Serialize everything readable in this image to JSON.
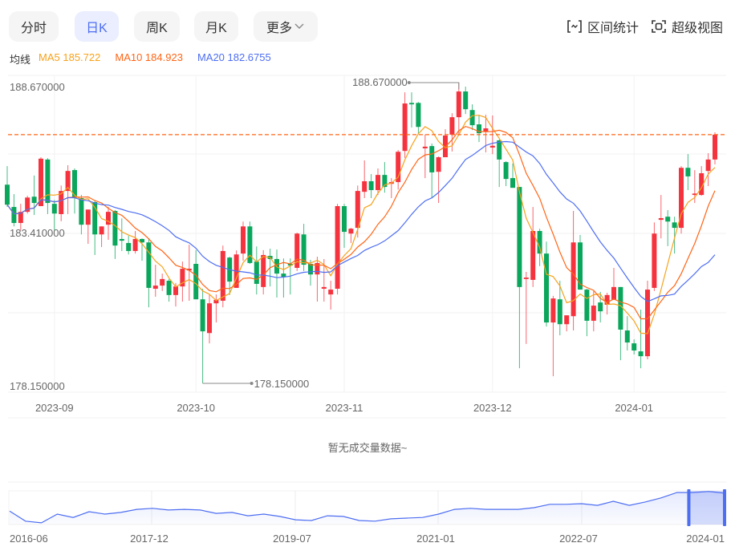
{
  "toolbar": {
    "tabs": [
      {
        "label": "分时",
        "active": false
      },
      {
        "label": "日K",
        "active": true
      },
      {
        "label": "周K",
        "active": false
      },
      {
        "label": "月K",
        "active": false
      },
      {
        "label": "更多",
        "active": false
      }
    ],
    "range_stats_label": "区间统计",
    "super_view_label": "超级视图"
  },
  "legend": {
    "title": "均线",
    "ma5": "MA5 185.722",
    "ma10": "MA10 184.923",
    "ma20": "MA20 182.6755"
  },
  "colors": {
    "up": "#f5333f",
    "down": "#0aa65c",
    "ma5": "#f7a21b",
    "ma10": "#ff6516",
    "ma20": "#4e6ef2",
    "accent": "#4e6ef2"
  },
  "chart_data": {
    "type": "candlestick",
    "y_labels": [
      "188.670000",
      "183.410000",
      "178.150000"
    ],
    "ylim": [
      178.15,
      188.67
    ],
    "last_price": 186.85,
    "high_marker": {
      "label": "188.670000",
      "index": 67,
      "value": 188.67
    },
    "low_marker": {
      "label": "178.150000",
      "index": 29,
      "value": 178.15
    },
    "x_labels": [
      {
        "label": "2023-09",
        "index": 7
      },
      {
        "label": "2023-10",
        "index": 28
      },
      {
        "label": "2023-11",
        "index": 50
      },
      {
        "label": "2023-12",
        "index": 72
      },
      {
        "label": "2024-01",
        "index": 93
      }
    ],
    "ohlc_fields": [
      "open",
      "high",
      "low",
      "close"
    ],
    "ohlc": [
      [
        185.1,
        185.75,
        184.32,
        184.4
      ],
      [
        184.32,
        184.77,
        183.64,
        183.76
      ],
      [
        183.76,
        184.43,
        183.5,
        184.15
      ],
      [
        184.15,
        184.71,
        184.09,
        184.65
      ],
      [
        184.68,
        185.42,
        184.04,
        184.46
      ],
      [
        184.35,
        186.06,
        184.35,
        186.01
      ],
      [
        185.98,
        186.03,
        184.07,
        184.46
      ],
      [
        184.43,
        184.57,
        183.5,
        184.09
      ],
      [
        184.07,
        185.07,
        183.82,
        184.88
      ],
      [
        184.88,
        185.78,
        184.07,
        185.58
      ],
      [
        185.61,
        185.67,
        184.09,
        184.65
      ],
      [
        184.63,
        184.74,
        183.36,
        183.7
      ],
      [
        183.7,
        184.23,
        183.03,
        184.23
      ],
      [
        184.49,
        184.54,
        182.64,
        183.36
      ],
      [
        183.36,
        183.64,
        182.92,
        183.64
      ],
      [
        183.7,
        184.32,
        183.17,
        184.15
      ],
      [
        184.18,
        184.21,
        182.5,
        182.97
      ],
      [
        183.2,
        183.92,
        182.78,
        183.14
      ],
      [
        183.06,
        183.31,
        182.66,
        182.78
      ],
      [
        182.78,
        183.48,
        182.69,
        183.2
      ],
      [
        183.2,
        183.22,
        182.44,
        183.08
      ],
      [
        183.08,
        183.22,
        180.81,
        181.49
      ],
      [
        181.46,
        182.3,
        181.18,
        181.57
      ],
      [
        181.57,
        181.99,
        181.38,
        181.8
      ],
      [
        181.74,
        181.8,
        181.01,
        181.24
      ],
      [
        181.24,
        181.66,
        180.84,
        181.54
      ],
      [
        181.54,
        182.41,
        181.01,
        182.16
      ],
      [
        182.1,
        183.0,
        181.04,
        182.16
      ],
      [
        182.33,
        182.81,
        181.09,
        181.09
      ],
      [
        181.09,
        181.46,
        178.15,
        179.97
      ],
      [
        179.91,
        181.26,
        179.55,
        180.95
      ],
      [
        180.95,
        181.26,
        180.28,
        181.07
      ],
      [
        181.04,
        182.97,
        180.81,
        182.78
      ],
      [
        182.55,
        182.58,
        181.24,
        181.71
      ],
      [
        181.49,
        182.8,
        181.49,
        182.66
      ],
      [
        182.69,
        183.81,
        182.44,
        183.64
      ],
      [
        183.64,
        183.81,
        182.33,
        182.36
      ],
      [
        182.41,
        182.94,
        181.26,
        181.63
      ],
      [
        181.52,
        182.81,
        181.26,
        182.64
      ],
      [
        182.61,
        182.86,
        181.54,
        182.5
      ],
      [
        182.5,
        182.83,
        181.15,
        181.99
      ],
      [
        181.99,
        182.52,
        181.15,
        181.88
      ],
      [
        182.33,
        182.52,
        181.26,
        182.27
      ],
      [
        182.19,
        183.42,
        182.08,
        183.39
      ],
      [
        183.36,
        183.73,
        182.08,
        182.3
      ],
      [
        182.33,
        182.47,
        181.57,
        181.96
      ],
      [
        181.96,
        182.58,
        181.01,
        182.36
      ],
      [
        181.46,
        182.5,
        181.01,
        181.52
      ],
      [
        181.26,
        181.74,
        180.73,
        181.43
      ],
      [
        181.46,
        184.43,
        181.26,
        184.35
      ],
      [
        184.35,
        184.43,
        182.89,
        183.45
      ],
      [
        183.39,
        183.59,
        183.06,
        183.56
      ],
      [
        183.59,
        185.07,
        183.25,
        184.88
      ],
      [
        184.85,
        185.95,
        184.63,
        185.22
      ],
      [
        185.22,
        185.47,
        184.63,
        184.91
      ],
      [
        184.91,
        185.67,
        184.74,
        185.44
      ],
      [
        185.44,
        185.89,
        184.82,
        185.02
      ],
      [
        185.13,
        185.33,
        184.63,
        185.19
      ],
      [
        185.19,
        186.31,
        184.93,
        186.25
      ],
      [
        186.28,
        188.33,
        186.03,
        187.94
      ],
      [
        187.96,
        188.33,
        187.1,
        187.91
      ],
      [
        187.96,
        187.99,
        186.87,
        187.12
      ],
      [
        186.37,
        186.85,
        185.33,
        186.43
      ],
      [
        186.45,
        186.54,
        184.63,
        185.53
      ],
      [
        185.55,
        186.09,
        184.46,
        186.06
      ],
      [
        186.06,
        187.04,
        186.06,
        186.82
      ],
      [
        186.85,
        187.6,
        186.26,
        187.46
      ],
      [
        187.46,
        188.67,
        186.82,
        188.36
      ],
      [
        188.36,
        188.53,
        187.57,
        187.74
      ],
      [
        187.71,
        187.91,
        187.01,
        187.18
      ],
      [
        187.21,
        187.52,
        186.59,
        186.9
      ],
      [
        186.96,
        187.55,
        186.23,
        187.07
      ],
      [
        186.4,
        187.52,
        186.17,
        186.46
      ],
      [
        186.65,
        186.68,
        185.02,
        185.98
      ],
      [
        185.89,
        185.92,
        185.05,
        185.3
      ],
      [
        185.33,
        185.84,
        184.99,
        184.99
      ],
      [
        185.02,
        185.02,
        178.68,
        181.52
      ],
      [
        181.8,
        182.05,
        179.53,
        181.85
      ],
      [
        181.77,
        184.32,
        181.52,
        183.48
      ],
      [
        183.48,
        183.56,
        182.25,
        182.69
      ],
      [
        182.69,
        183.11,
        180.14,
        180.28
      ],
      [
        180.28,
        181.21,
        178.4,
        181.12
      ],
      [
        181.09,
        181.74,
        179.83,
        180.22
      ],
      [
        180.22,
        180.53,
        179.97,
        180.53
      ],
      [
        180.5,
        184.18,
        180.0,
        183.08
      ],
      [
        183.08,
        183.34,
        181.43,
        181.43
      ],
      [
        181.43,
        181.46,
        179.8,
        180.34
      ],
      [
        180.34,
        181.38,
        179.97,
        180.87
      ],
      [
        180.98,
        181.35,
        180.28,
        180.67
      ],
      [
        180.9,
        181.32,
        180.56,
        181.24
      ],
      [
        181.07,
        182.19,
        181.07,
        181.52
      ],
      [
        181.52,
        181.52,
        178.96,
        180.03
      ],
      [
        180.0,
        180.5,
        179.3,
        179.58
      ],
      [
        179.55,
        179.69,
        179.16,
        179.3
      ],
      [
        179.27,
        180.73,
        178.68,
        179.1
      ],
      [
        179.1,
        181.74,
        178.99,
        181.43
      ],
      [
        181.49,
        183.78,
        181.38,
        183.39
      ],
      [
        183.87,
        184.74,
        183.22,
        183.93
      ],
      [
        183.98,
        184.21,
        182.95,
        183.81
      ],
      [
        183.78,
        183.98,
        182.69,
        183.59
      ],
      [
        183.59,
        185.75,
        183.39,
        185.69
      ],
      [
        185.69,
        186.17,
        184.91,
        185.39
      ],
      [
        184.74,
        185.61,
        184.46,
        184.79
      ],
      [
        184.74,
        185.75,
        184.71,
        185.5
      ],
      [
        185.58,
        186.2,
        185.05,
        185.98
      ],
      [
        185.98,
        186.93,
        185.81,
        186.85
      ]
    ]
  },
  "volume": {
    "empty_text": "暂无成交量数据~"
  },
  "navigator": {
    "labels": [
      "2016-06",
      "2017-12",
      "2019-07",
      "2021-01",
      "2022-07",
      "2024-01"
    ],
    "series": [
      40,
      10,
      5,
      31,
      21,
      38,
      31,
      36,
      45,
      48,
      43,
      45,
      43,
      33,
      36,
      26,
      31,
      24,
      14,
      12,
      26,
      24,
      12,
      10,
      17,
      19,
      21,
      31,
      45,
      48,
      45,
      45,
      45,
      50,
      60,
      60,
      62,
      57,
      69,
      57,
      67,
      79,
      95,
      95,
      98,
      93
    ],
    "selection_fraction": [
      0.95,
      1.0
    ]
  }
}
